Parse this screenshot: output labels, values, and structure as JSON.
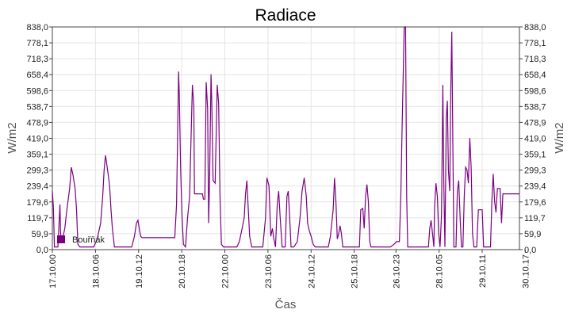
{
  "chart_data": {
    "type": "line",
    "title": "Radiace",
    "xlabel": "Čas",
    "ylabel": "W/m2",
    "ylim": [
      0,
      838.0
    ],
    "xlim": [
      0,
      13.54
    ],
    "grid": true,
    "legend_position": "bottom-left",
    "yticks": [
      "0,0",
      "59,9",
      "119,7",
      "179,6",
      "239,4",
      "299,3",
      "359,1",
      "419,0",
      "478,9",
      "538,7",
      "598,6",
      "658,4",
      "718,3",
      "778,1",
      "838,0"
    ],
    "yticks_values": [
      0,
      59.9,
      119.7,
      179.6,
      239.4,
      299.3,
      359.1,
      419.0,
      478.9,
      538.7,
      598.6,
      658.4,
      718.3,
      778.1,
      838.0
    ],
    "xticks": [
      "17.10.00",
      "18.10.06",
      "19.10.12",
      "20.10.18",
      "22.10.00",
      "23.10.06",
      "24.10.12",
      "25.10.18",
      "26.10.23",
      "28.10.05",
      "29.10.11",
      "30.10.17"
    ],
    "xticks_days": [
      0,
      1.25,
      2.5,
      3.75,
      5,
      6.25,
      7.5,
      8.75,
      9.96,
      11.21,
      12.46,
      13.71
    ],
    "series": [
      {
        "name": "Bouřňák",
        "color": "#7b0080",
        "points": [
          [
            0,
            220
          ],
          [
            0.03,
            160
          ],
          [
            0.06,
            10
          ],
          [
            0.16,
            10
          ],
          [
            0.22,
            170
          ],
          [
            0.24,
            60
          ],
          [
            0.28,
            30
          ],
          [
            0.36,
            80
          ],
          [
            0.42,
            150
          ],
          [
            0.5,
            230
          ],
          [
            0.55,
            310
          ],
          [
            0.6,
            280
          ],
          [
            0.66,
            230
          ],
          [
            0.7,
            150
          ],
          [
            0.74,
            20
          ],
          [
            0.8,
            10
          ],
          [
            1.0,
            10
          ],
          [
            1.2,
            10
          ],
          [
            1.3,
            40
          ],
          [
            1.4,
            100
          ],
          [
            1.46,
            200
          ],
          [
            1.5,
            300
          ],
          [
            1.54,
            355
          ],
          [
            1.58,
            320
          ],
          [
            1.62,
            280
          ],
          [
            1.66,
            240
          ],
          [
            1.7,
            150
          ],
          [
            1.74,
            80
          ],
          [
            1.8,
            10
          ],
          [
            2.0,
            10
          ],
          [
            2.3,
            10
          ],
          [
            2.38,
            50
          ],
          [
            2.44,
            100
          ],
          [
            2.48,
            110
          ],
          [
            2.52,
            80
          ],
          [
            2.56,
            50
          ],
          [
            2.6,
            45
          ],
          [
            2.9,
            45
          ],
          [
            3.2,
            45
          ],
          [
            3.45,
            45
          ],
          [
            3.55,
            45
          ],
          [
            3.6,
            170
          ],
          [
            3.66,
            670
          ],
          [
            3.68,
            580
          ],
          [
            3.72,
            300
          ],
          [
            3.76,
            120
          ],
          [
            3.8,
            20
          ],
          [
            3.86,
            10
          ],
          [
            3.92,
            120
          ],
          [
            3.98,
            200
          ],
          [
            4.02,
            420
          ],
          [
            4.06,
            620
          ],
          [
            4.1,
            540
          ],
          [
            4.12,
            210
          ],
          [
            4.2,
            210
          ],
          [
            4.35,
            210
          ],
          [
            4.38,
            190
          ],
          [
            4.42,
            190
          ],
          [
            4.46,
            630
          ],
          [
            4.5,
            530
          ],
          [
            4.53,
            100
          ],
          [
            4.56,
            290
          ],
          [
            4.6,
            660
          ],
          [
            4.62,
            560
          ],
          [
            4.66,
            260
          ],
          [
            4.72,
            250
          ],
          [
            4.78,
            620
          ],
          [
            4.82,
            550
          ],
          [
            4.86,
            200
          ],
          [
            4.9,
            20
          ],
          [
            4.96,
            10
          ],
          [
            5.2,
            10
          ],
          [
            5.35,
            10
          ],
          [
            5.42,
            30
          ],
          [
            5.5,
            80
          ],
          [
            5.56,
            120
          ],
          [
            5.6,
            210
          ],
          [
            5.64,
            260
          ],
          [
            5.68,
            150
          ],
          [
            5.72,
            50
          ],
          [
            5.78,
            10
          ],
          [
            6.0,
            10
          ],
          [
            6.1,
            10
          ],
          [
            6.18,
            120
          ],
          [
            6.22,
            270
          ],
          [
            6.28,
            240
          ],
          [
            6.33,
            50
          ],
          [
            6.38,
            80
          ],
          [
            6.42,
            40
          ],
          [
            6.47,
            10
          ],
          [
            6.52,
            170
          ],
          [
            6.56,
            220
          ],
          [
            6.6,
            130
          ],
          [
            6.66,
            10
          ],
          [
            6.75,
            10
          ],
          [
            6.8,
            200
          ],
          [
            6.84,
            220
          ],
          [
            6.88,
            120
          ],
          [
            6.92,
            10
          ],
          [
            7.0,
            10
          ],
          [
            7.1,
            30
          ],
          [
            7.18,
            120
          ],
          [
            7.24,
            220
          ],
          [
            7.3,
            270
          ],
          [
            7.36,
            200
          ],
          [
            7.4,
            100
          ],
          [
            7.45,
            70
          ],
          [
            7.5,
            50
          ],
          [
            7.56,
            20
          ],
          [
            7.62,
            10
          ],
          [
            7.9,
            10
          ],
          [
            8.0,
            10
          ],
          [
            8.06,
            50
          ],
          [
            8.14,
            150
          ],
          [
            8.18,
            270
          ],
          [
            8.22,
            180
          ],
          [
            8.26,
            40
          ],
          [
            8.3,
            60
          ],
          [
            8.34,
            90
          ],
          [
            8.38,
            60
          ],
          [
            8.42,
            10
          ],
          [
            8.8,
            10
          ],
          [
            8.9,
            10
          ],
          [
            8.94,
            150
          ],
          [
            9.0,
            155
          ],
          [
            9.04,
            80
          ],
          [
            9.08,
            200
          ],
          [
            9.12,
            245
          ],
          [
            9.16,
            180
          ],
          [
            9.2,
            30
          ],
          [
            9.24,
            10
          ],
          [
            9.3,
            10
          ],
          [
            9.6,
            10
          ],
          [
            9.8,
            10
          ],
          [
            9.9,
            20
          ],
          [
            9.98,
            30
          ],
          [
            10.06,
            30
          ],
          [
            10.1,
            200
          ],
          [
            10.14,
            470
          ],
          [
            10.2,
            838
          ],
          [
            10.24,
            838
          ],
          [
            10.27,
            200
          ],
          [
            10.3,
            10
          ],
          [
            10.5,
            10
          ],
          [
            10.8,
            10
          ],
          [
            10.9,
            10
          ],
          [
            10.94,
            80
          ],
          [
            10.98,
            110
          ],
          [
            11.02,
            60
          ],
          [
            11.06,
            10
          ],
          [
            11.08,
            160
          ],
          [
            11.12,
            250
          ],
          [
            11.16,
            200
          ],
          [
            11.2,
            60
          ],
          [
            11.24,
            10
          ],
          [
            11.28,
            130
          ],
          [
            11.32,
            620
          ],
          [
            11.35,
            240
          ],
          [
            11.38,
            10
          ],
          [
            11.42,
            500
          ],
          [
            11.45,
            560
          ],
          [
            11.48,
            300
          ],
          [
            11.52,
            220
          ],
          [
            11.55,
            600
          ],
          [
            11.58,
            820
          ],
          [
            11.61,
            400
          ],
          [
            11.64,
            10
          ],
          [
            11.7,
            10
          ],
          [
            11.74,
            220
          ],
          [
            11.78,
            260
          ],
          [
            11.82,
            120
          ],
          [
            11.86,
            10
          ],
          [
            11.9,
            10
          ],
          [
            11.94,
            200
          ],
          [
            11.98,
            310
          ],
          [
            12.02,
            300
          ],
          [
            12.06,
            250
          ],
          [
            12.1,
            420
          ],
          [
            12.14,
            310
          ],
          [
            12.18,
            60
          ],
          [
            12.22,
            10
          ],
          [
            12.3,
            10
          ],
          [
            12.35,
            150
          ],
          [
            12.46,
            150
          ],
          [
            12.5,
            10
          ],
          [
            12.7,
            10
          ],
          [
            12.74,
            180
          ],
          [
            12.78,
            285
          ],
          [
            12.82,
            180
          ],
          [
            12.86,
            140
          ],
          [
            12.9,
            230
          ],
          [
            12.94,
            230
          ],
          [
            12.98,
            230
          ],
          [
            13.02,
            100
          ],
          [
            13.06,
            210
          ],
          [
            13.2,
            210
          ],
          [
            13.3,
            210
          ],
          [
            13.54,
            210
          ]
        ]
      }
    ]
  }
}
